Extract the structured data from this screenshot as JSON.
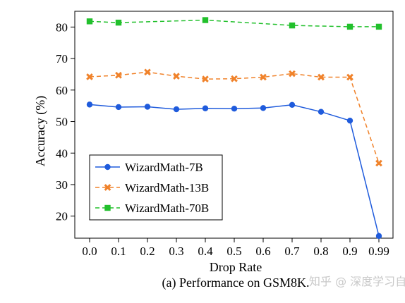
{
  "chart_data": {
    "type": "line",
    "x": [
      "0.0",
      "0.1",
      "0.2",
      "0.3",
      "0.4",
      "0.5",
      "0.6",
      "0.7",
      "0.8",
      "0.9",
      "0.99"
    ],
    "xlabel": "Drop Rate",
    "ylabel": "Accuracy (%)",
    "ylim": [
      13,
      85
    ],
    "yticks": [
      20,
      30,
      40,
      50,
      60,
      70,
      80
    ],
    "grid": false,
    "legend_position": "lower-left",
    "series": [
      {
        "name": "WizardMath-7B",
        "color": "#1f5bdc",
        "marker": "circle",
        "line_style": "solid",
        "values": [
          55.4,
          54.6,
          54.7,
          53.9,
          54.2,
          54.1,
          54.3,
          55.3,
          53.1,
          50.3,
          13.7
        ]
      },
      {
        "name": "WizardMath-13B",
        "color": "#f0822a",
        "marker": "x",
        "line_style": "dashed",
        "values": [
          64.2,
          64.7,
          65.7,
          64.4,
          63.5,
          63.6,
          64.1,
          65.2,
          64.1,
          64.1,
          36.8
        ]
      },
      {
        "name": "WizardMath-70B",
        "color": "#22c02c",
        "marker": "square",
        "line_style": "dashed",
        "values": [
          81.8,
          81.4,
          null,
          null,
          82.2,
          null,
          null,
          80.5,
          null,
          80.1,
          80.1
        ]
      }
    ],
    "caption": "(a) Performance on GSM8K.",
    "watermark": "知乎 @ 深度学习自然语言处理"
  }
}
